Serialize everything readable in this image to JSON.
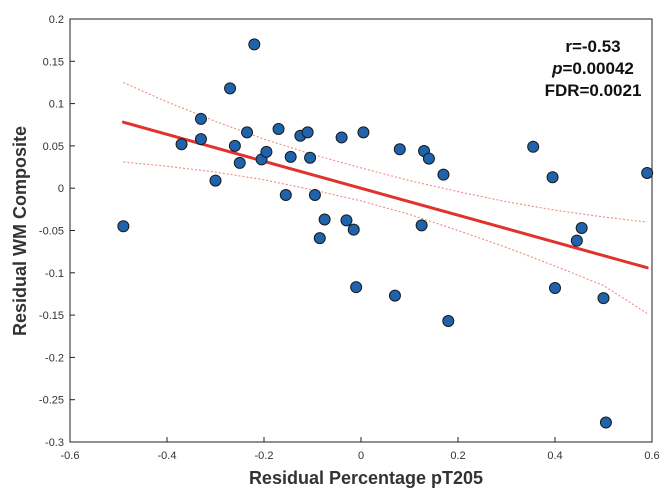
{
  "chart_data": {
    "type": "scatter",
    "xlabel": "Residual Percentage pT205",
    "ylabel": "Residual WM Composite",
    "xlim": [
      -0.6,
      0.6
    ],
    "ylim": [
      -0.3,
      0.2
    ],
    "x_ticks": [
      "-0.6",
      "-0.4",
      "-0.2",
      "0",
      "0.2",
      "0.4",
      "0.6"
    ],
    "y_ticks": [
      "-0.3",
      "-0.25",
      "-0.2",
      "-0.15",
      "-0.1",
      "-0.05",
      "0",
      "0.05",
      "0.1",
      "0.15",
      "0.2"
    ],
    "x_tick_values": [
      -0.6,
      -0.4,
      -0.2,
      0,
      0.2,
      0.4,
      0.6
    ],
    "y_tick_values": [
      -0.3,
      -0.25,
      -0.2,
      -0.15,
      -0.1,
      -0.05,
      0,
      0.05,
      0.1,
      0.15,
      0.2
    ],
    "grid": false,
    "annotation": {
      "r_label": "r=-0.53",
      "p_symbol": "p",
      "p_value": "=0.00042",
      "fdr_label": "FDR=0.0021"
    },
    "marker_color": "#1f63ad",
    "marker_edge_color": "#1a1a1a",
    "fit_color": "#e0332d",
    "ci_color": "#ef8a7e",
    "fit_line": {
      "x": [
        -0.49,
        0.59
      ],
      "y": [
        0.078,
        -0.094
      ]
    },
    "ci_upper": {
      "x": [
        -0.49,
        -0.4,
        -0.3,
        -0.2,
        -0.1,
        0.0,
        0.1,
        0.2,
        0.3,
        0.4,
        0.5,
        0.59
      ],
      "y": [
        0.125,
        0.102,
        0.079,
        0.058,
        0.04,
        0.024,
        0.009,
        -0.004,
        -0.016,
        -0.026,
        -0.034,
        -0.04
      ]
    },
    "ci_lower": {
      "x": [
        -0.49,
        -0.4,
        -0.3,
        -0.2,
        -0.1,
        0.0,
        0.1,
        0.2,
        0.3,
        0.4,
        0.5,
        0.59
      ],
      "y": [
        0.031,
        0.026,
        0.019,
        0.01,
        -0.002,
        -0.015,
        -0.031,
        -0.05,
        -0.07,
        -0.092,
        -0.115,
        -0.148
      ]
    },
    "points": [
      {
        "x": -0.49,
        "y": -0.045
      },
      {
        "x": -0.37,
        "y": 0.052
      },
      {
        "x": -0.33,
        "y": 0.082
      },
      {
        "x": -0.33,
        "y": 0.058
      },
      {
        "x": -0.3,
        "y": 0.009
      },
      {
        "x": -0.27,
        "y": 0.118
      },
      {
        "x": -0.26,
        "y": 0.05
      },
      {
        "x": -0.25,
        "y": 0.03
      },
      {
        "x": -0.235,
        "y": 0.066
      },
      {
        "x": -0.22,
        "y": 0.17
      },
      {
        "x": -0.205,
        "y": 0.034
      },
      {
        "x": -0.195,
        "y": 0.043
      },
      {
        "x": -0.17,
        "y": 0.07
      },
      {
        "x": -0.155,
        "y": -0.008
      },
      {
        "x": -0.145,
        "y": 0.037
      },
      {
        "x": -0.125,
        "y": 0.062
      },
      {
        "x": -0.11,
        "y": 0.066
      },
      {
        "x": -0.105,
        "y": 0.036
      },
      {
        "x": -0.095,
        "y": -0.008
      },
      {
        "x": -0.085,
        "y": -0.059
      },
      {
        "x": -0.075,
        "y": -0.037
      },
      {
        "x": -0.04,
        "y": 0.06
      },
      {
        "x": -0.03,
        "y": -0.038
      },
      {
        "x": -0.015,
        "y": -0.049
      },
      {
        "x": -0.01,
        "y": -0.117
      },
      {
        "x": 0.005,
        "y": 0.066
      },
      {
        "x": 0.07,
        "y": -0.127
      },
      {
        "x": 0.08,
        "y": 0.046
      },
      {
        "x": 0.125,
        "y": -0.044
      },
      {
        "x": 0.13,
        "y": 0.044
      },
      {
        "x": 0.14,
        "y": 0.035
      },
      {
        "x": 0.17,
        "y": 0.016
      },
      {
        "x": 0.18,
        "y": -0.157
      },
      {
        "x": 0.355,
        "y": 0.049
      },
      {
        "x": 0.395,
        "y": 0.013
      },
      {
        "x": 0.4,
        "y": -0.118
      },
      {
        "x": 0.445,
        "y": -0.062
      },
      {
        "x": 0.455,
        "y": -0.047
      },
      {
        "x": 0.5,
        "y": -0.13
      },
      {
        "x": 0.505,
        "y": -0.277
      },
      {
        "x": 0.59,
        "y": 0.018
      }
    ]
  }
}
